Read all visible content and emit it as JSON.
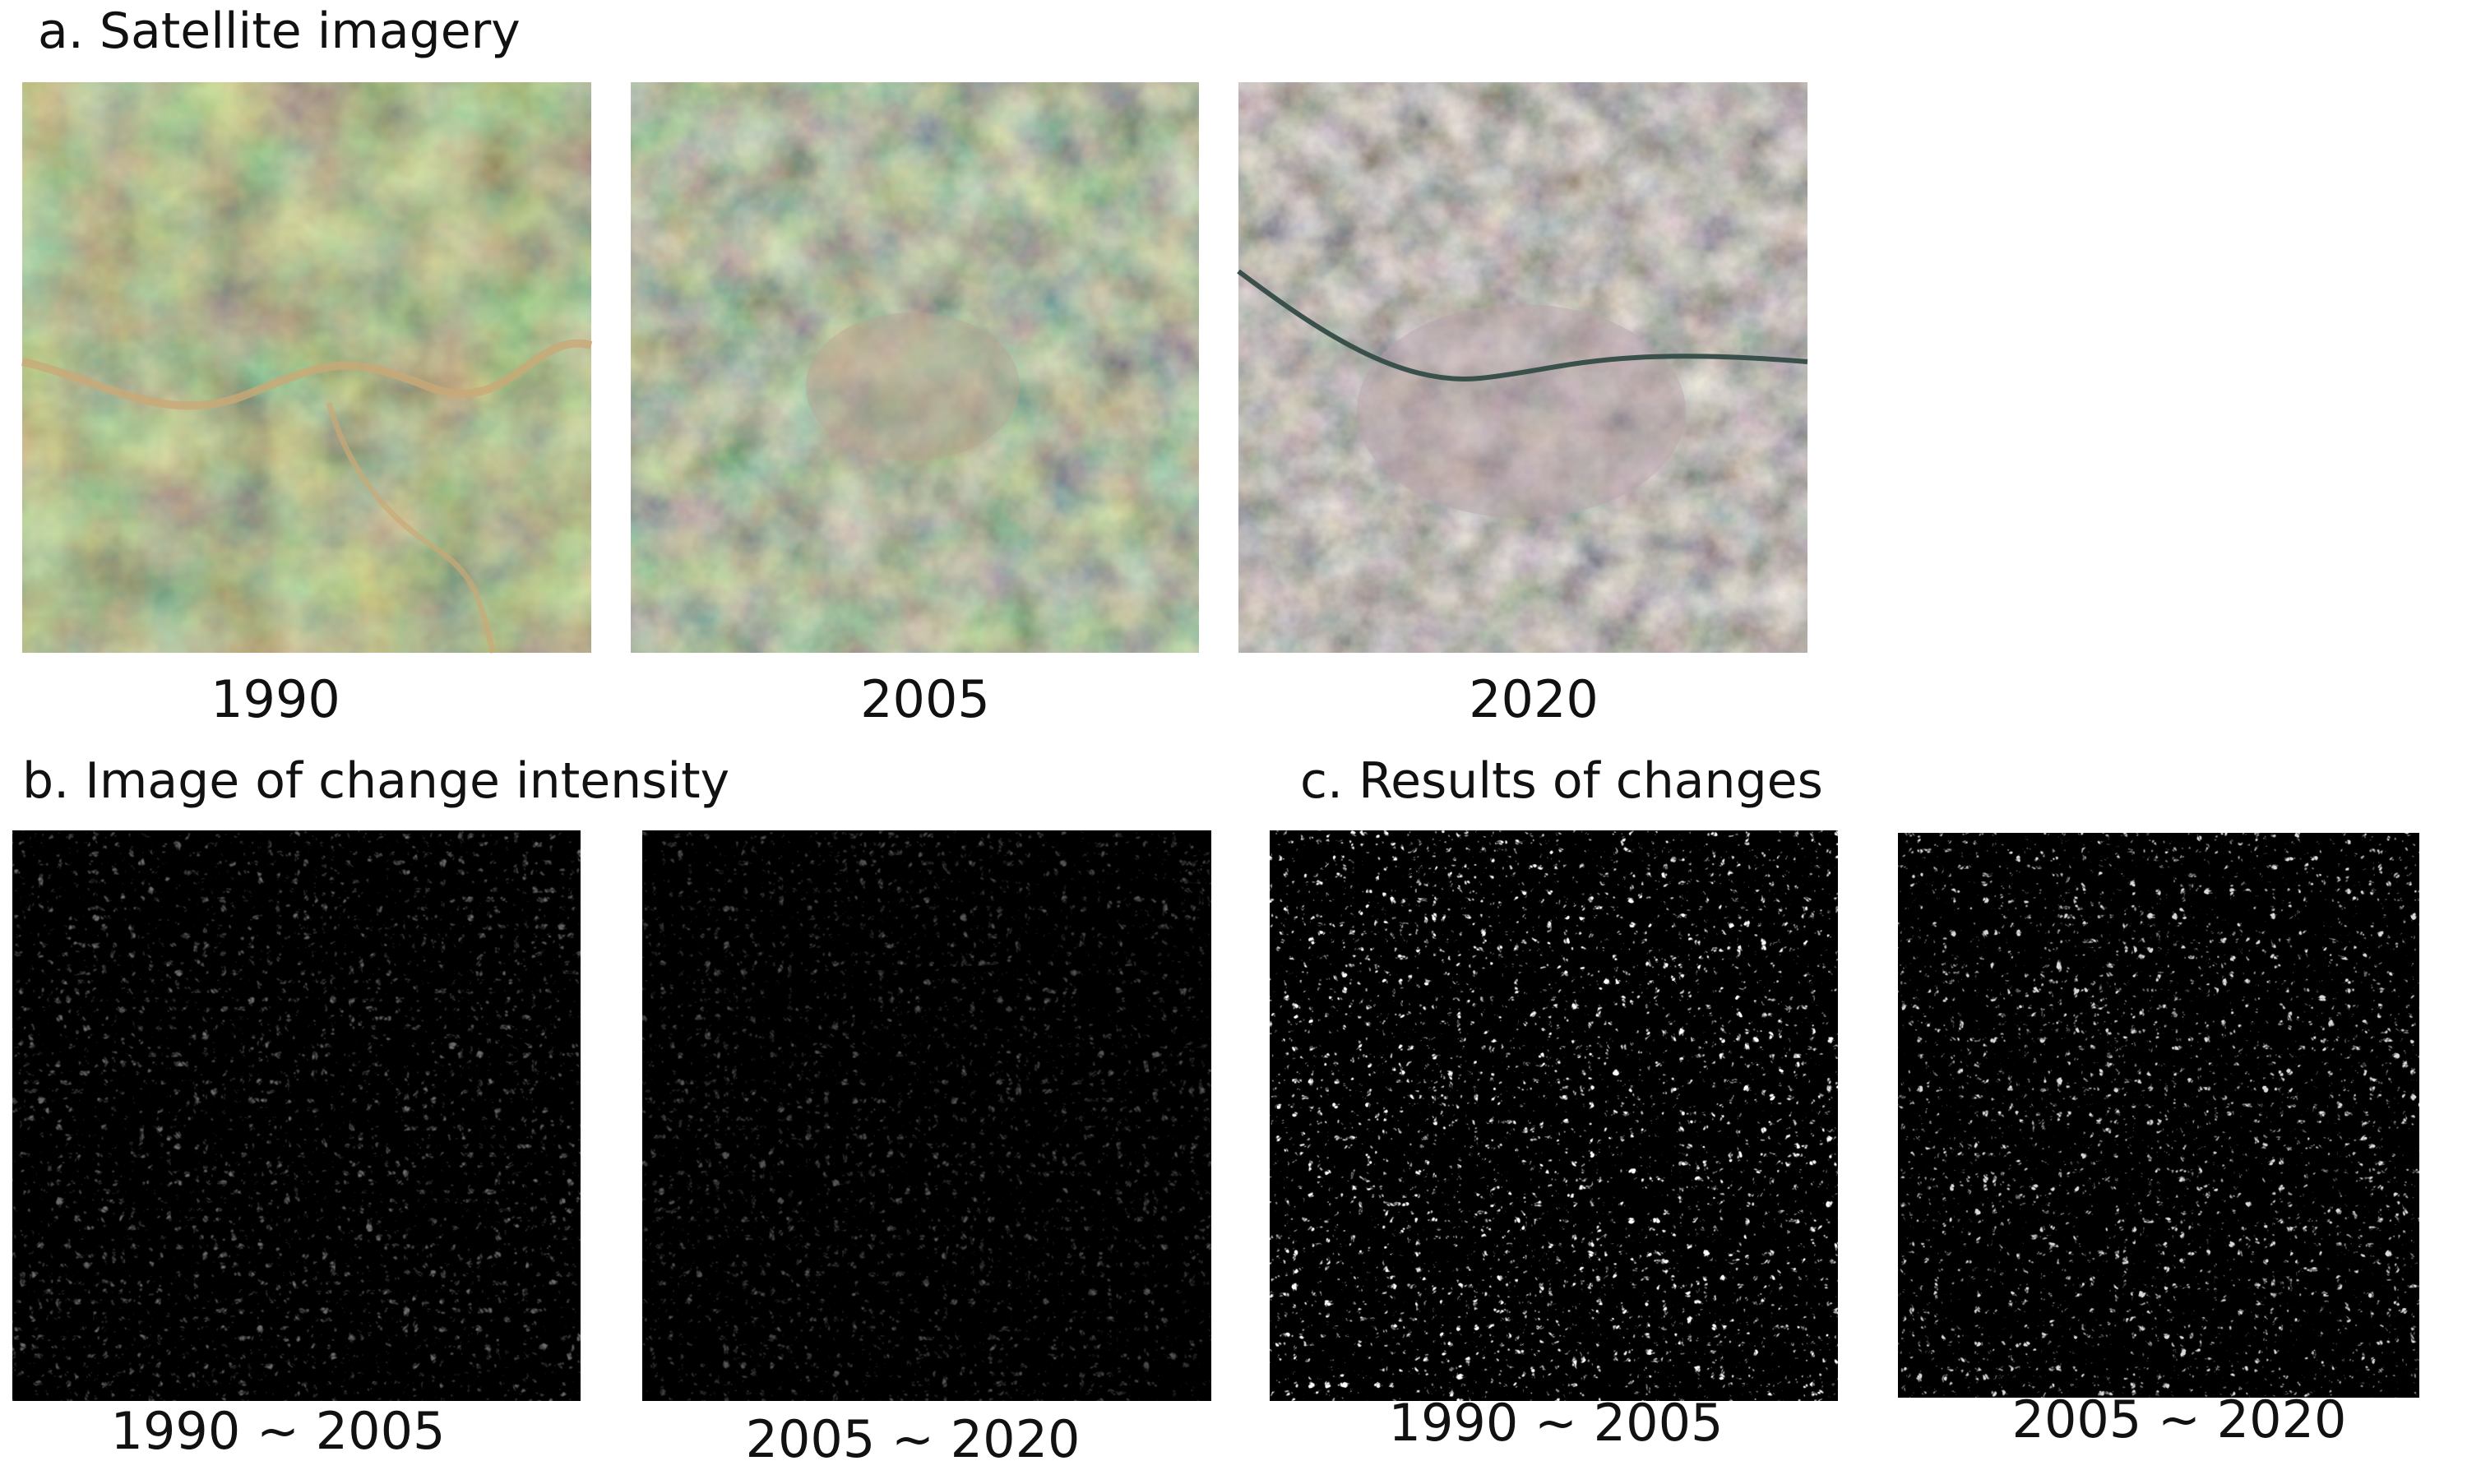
{
  "panel_a": {
    "title": "a. Satellite imagery",
    "labels": [
      "1990",
      "2005",
      "2020"
    ]
  },
  "panel_b": {
    "title": "b. Image of change intensity",
    "labels": [
      "1990 ~ 2005",
      "2005 ~ 2020"
    ]
  },
  "panel_c": {
    "title": "c. Results of changes",
    "labels": [
      "1990 ~ 2005",
      "2005 ~ 2020"
    ]
  }
}
